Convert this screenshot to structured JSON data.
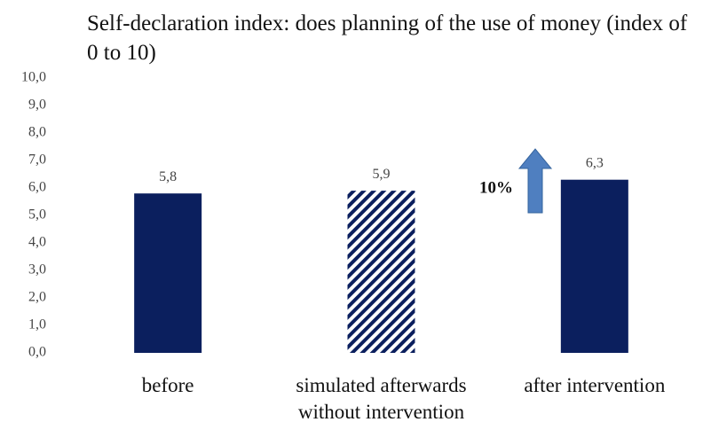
{
  "chart_data": {
    "type": "bar",
    "title": "Self-declaration index: does planning of the use of money (index of 0 to 10)",
    "categories": [
      "before",
      "simulated afterwards without intervention",
      "after intervention"
    ],
    "values": [
      5.8,
      5.9,
      6.3
    ],
    "value_labels": [
      "5,8",
      "5,9",
      "6,3"
    ],
    "color": "#0b1f5e",
    "hatched": [
      false,
      true,
      false
    ],
    "ylim": [
      0,
      10
    ],
    "yticks": [
      {
        "value": 0,
        "label": "0,0"
      },
      {
        "value": 1,
        "label": "1,0"
      },
      {
        "value": 2,
        "label": "2,0"
      },
      {
        "value": 3,
        "label": "3,0"
      },
      {
        "value": 4,
        "label": "4,0"
      },
      {
        "value": 5,
        "label": "5,0"
      },
      {
        "value": 6,
        "label": "6,0"
      },
      {
        "value": 7,
        "label": "7,0"
      },
      {
        "value": 8,
        "label": "8,0"
      },
      {
        "value": 9,
        "label": "9,0"
      },
      {
        "value": 10,
        "label": "10,0"
      }
    ],
    "grid": false,
    "annotations": [
      "10%"
    ]
  }
}
